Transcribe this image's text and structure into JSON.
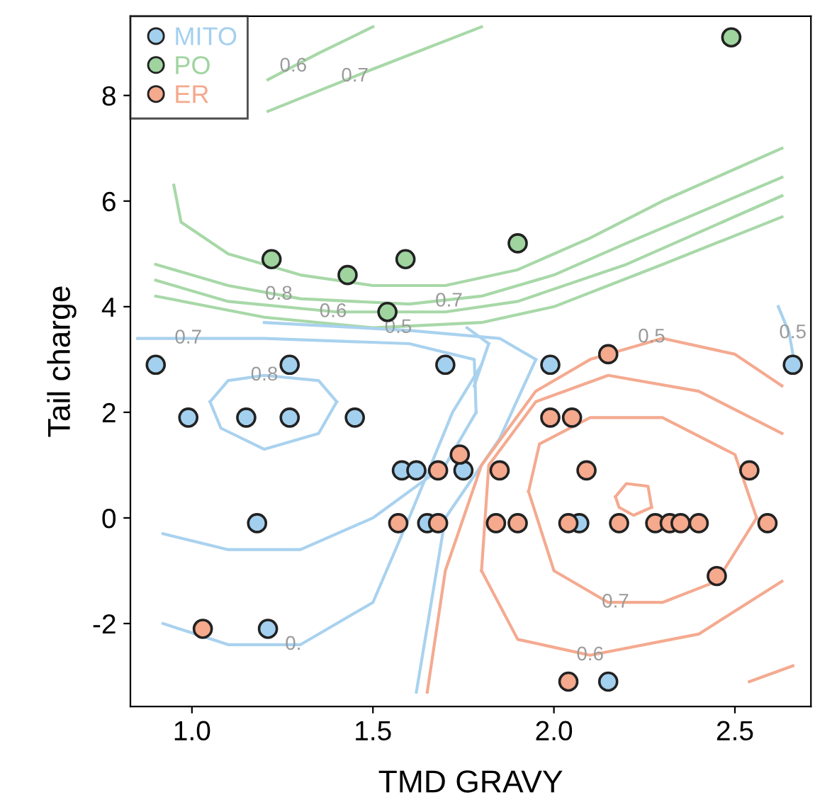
{
  "chart_data": {
    "type": "scatter",
    "xlabel": "TMD GRAVY",
    "ylabel": "Tail charge",
    "xlim": [
      0.83,
      2.71
    ],
    "ylim": [
      -3.57,
      9.5
    ],
    "xticks": [
      {
        "value": 1,
        "label": "1.0"
      },
      {
        "value": 1.5,
        "label": "1.5"
      },
      {
        "value": 2,
        "label": "2.0"
      },
      {
        "value": 2.5,
        "label": "2.5"
      }
    ],
    "yticks": [
      -2,
      0,
      2,
      4,
      6,
      8
    ],
    "legend": "top left",
    "marker": "circle",
    "series": [
      {
        "name": "MITO",
        "color": "#a3d0ef",
        "x": [
          0.9,
          0.99,
          1.15,
          1.27,
          1.27,
          1.45,
          1.18,
          1.21,
          1.7,
          1.58,
          1.62,
          1.75,
          1.65,
          1.99,
          2.07,
          2.15,
          2.66
        ],
        "values": [
          2.9,
          1.9,
          1.9,
          2.9,
          1.9,
          1.9,
          -0.1,
          -2.1,
          2.9,
          0.9,
          0.9,
          0.9,
          -0.1,
          2.9,
          -0.1,
          -3.1,
          2.9
        ]
      },
      {
        "name": "PO",
        "color": "#9fd49f",
        "x": [
          1.22,
          1.43,
          1.59,
          1.54,
          1.9,
          2.49
        ],
        "values": [
          4.9,
          4.6,
          4.9,
          3.9,
          5.2,
          9.1
        ]
      },
      {
        "name": "ER",
        "color": "#f5a98d",
        "x": [
          1.03,
          1.68,
          1.74,
          1.57,
          1.68,
          2.15,
          1.99,
          2.05,
          1.85,
          2.09,
          2.54,
          1.84,
          1.9,
          2.04,
          2.18,
          2.28,
          2.32,
          2.35,
          2.4,
          2.59,
          2.45,
          2.04
        ],
        "values": [
          -2.1,
          0.9,
          1.2,
          -0.1,
          -0.1,
          3.1,
          1.9,
          1.9,
          0.9,
          0.9,
          0.9,
          -0.1,
          -0.1,
          -0.1,
          -0.1,
          -0.1,
          -0.1,
          -0.1,
          -0.1,
          -0.1,
          -1.1,
          -3.1
        ]
      },
      {
        "type": "line",
        "marker": "none",
        "color": "#a8d8a8",
        "x": [
          0.95,
          0.97,
          1.1,
          1.3,
          1.5,
          1.7,
          1.9,
          2.1,
          2.3,
          2.63
        ],
        "values": [
          6.3,
          5.6,
          5.0,
          4.6,
          4.4,
          4.4,
          4.7,
          5.3,
          6.0,
          7.0
        ]
      },
      {
        "type": "line",
        "marker": "none",
        "color": "#a8d8a8",
        "x": [
          0.9,
          1.1,
          1.3,
          1.6,
          1.8,
          2.0,
          2.2,
          2.63
        ],
        "values": [
          4.8,
          4.4,
          4.15,
          4.05,
          4.2,
          4.6,
          5.2,
          6.45
        ]
      },
      {
        "type": "line",
        "marker": "none",
        "color": "#a8d8a8",
        "x": [
          0.9,
          1.1,
          1.4,
          1.7,
          1.9,
          2.2,
          2.63
        ],
        "values": [
          4.5,
          4.1,
          3.9,
          3.9,
          4.1,
          4.8,
          6.1
        ]
      },
      {
        "type": "line",
        "marker": "none",
        "color": "#a8d8a8",
        "x": [
          0.9,
          1.2,
          1.5,
          1.8,
          2.0,
          2.3,
          2.63
        ],
        "values": [
          4.2,
          3.8,
          3.6,
          3.7,
          4.0,
          4.8,
          5.7
        ]
      },
      {
        "type": "line",
        "marker": "none",
        "color": "#a8d8a8",
        "x": [
          1.21,
          1.35,
          1.5
        ],
        "values": [
          8.3,
          8.8,
          9.3
        ]
      },
      {
        "type": "line",
        "marker": "none",
        "color": "#a8d8a8",
        "x": [
          1.21,
          1.5,
          1.8
        ],
        "values": [
          7.7,
          8.5,
          9.3
        ]
      },
      {
        "type": "line",
        "marker": "none",
        "color": "#a9d2ee",
        "x": [
          0.85,
          1.2,
          1.6,
          1.78,
          1.785
        ],
        "values": [
          3.4,
          3.4,
          3.3,
          3.0,
          2.0
        ]
      },
      {
        "type": "line",
        "marker": "none",
        "color": "#a9d2ee",
        "x": [
          0.92,
          1.1,
          1.3,
          1.5,
          1.7,
          1.785
        ],
        "values": [
          -0.3,
          -0.6,
          -0.6,
          0.0,
          1.0,
          2.0
        ]
      },
      {
        "type": "line",
        "marker": "none",
        "color": "#a9d2ee",
        "x": [
          1.05,
          1.1,
          1.2,
          1.35,
          1.4
        ],
        "values": [
          2.2,
          2.6,
          2.7,
          2.6,
          2.2
        ]
      },
      {
        "type": "line",
        "marker": "none",
        "color": "#a9d2ee",
        "x": [
          1.05,
          1.08,
          1.2,
          1.35,
          1.4
        ],
        "values": [
          2.2,
          1.7,
          1.3,
          1.6,
          2.2
        ]
      },
      {
        "type": "line",
        "marker": "none",
        "color": "#a9d2ee",
        "x": [
          0.92,
          1.1,
          1.3,
          1.5,
          1.6,
          1.72,
          1.8
        ],
        "values": [
          -2.0,
          -2.4,
          -2.4,
          -1.6,
          0.0,
          2.0,
          2.9
        ]
      },
      {
        "type": "line",
        "marker": "none",
        "color": "#a9d2ee",
        "x": [
          1.2,
          1.6,
          1.85,
          1.95
        ],
        "values": [
          3.7,
          3.55,
          3.4,
          3.0
        ]
      },
      {
        "type": "line",
        "marker": "none",
        "color": "#a9d2ee",
        "x": [
          1.62,
          1.7,
          1.85,
          1.95
        ],
        "values": [
          -3.3,
          0.0,
          1.5,
          3.0
        ]
      },
      {
        "type": "line",
        "marker": "none",
        "color": "#a9d2ee",
        "x": [
          1.76,
          1.82
        ],
        "values": [
          3.6,
          3.3
        ]
      },
      {
        "type": "line",
        "marker": "none",
        "color": "#a9d2ee",
        "x": [
          1.78,
          1.82
        ],
        "values": [
          2.5,
          3.3
        ]
      },
      {
        "type": "line",
        "marker": "none",
        "color": "#a9d2ee",
        "x": [
          2.62,
          2.65,
          2.66
        ],
        "values": [
          4.0,
          3.5,
          3.1
        ]
      },
      {
        "type": "line",
        "marker": "none",
        "color": "#f4aa90",
        "x": [
          1.65,
          1.7,
          1.8,
          1.95,
          2.1,
          2.3,
          2.5,
          2.63
        ],
        "values": [
          -3.3,
          -1.0,
          1.0,
          2.4,
          3.0,
          3.4,
          3.1,
          2.5
        ]
      },
      {
        "type": "line",
        "marker": "none",
        "color": "#f4aa90",
        "x": [
          1.8,
          1.9,
          2.1,
          2.4,
          2.63
        ],
        "values": [
          -1.0,
          -2.3,
          -2.6,
          -2.2,
          -1.2
        ]
      },
      {
        "type": "line",
        "marker": "none",
        "color": "#f4aa90",
        "x": [
          1.8,
          1.82,
          1.95,
          2.15,
          2.4,
          2.63
        ],
        "values": [
          -1.0,
          1.0,
          2.2,
          2.7,
          2.4,
          1.6
        ]
      },
      {
        "type": "line",
        "marker": "none",
        "color": "#f4aa90",
        "x": [
          1.93,
          1.96,
          2.1,
          2.3,
          2.5,
          2.56
        ],
        "values": [
          0.5,
          1.4,
          1.9,
          1.9,
          1.2,
          0.0
        ]
      },
      {
        "type": "line",
        "marker": "none",
        "color": "#f4aa90",
        "x": [
          1.93,
          2.0,
          2.15,
          2.3,
          2.45,
          2.56
        ],
        "values": [
          0.5,
          -1.0,
          -1.6,
          -1.6,
          -1.2,
          0.0
        ]
      },
      {
        "type": "line",
        "marker": "none",
        "color": "#f4aa90",
        "x": [
          2.17,
          2.2,
          2.26,
          2.27
        ],
        "values": [
          0.4,
          0.65,
          0.6,
          0.2
        ]
      },
      {
        "type": "line",
        "marker": "none",
        "color": "#f4aa90",
        "x": [
          2.17,
          2.18,
          2.22,
          2.27
        ],
        "values": [
          0.4,
          0.2,
          0.05,
          0.2
        ]
      },
      {
        "type": "line",
        "marker": "none",
        "color": "#f4aa90",
        "x": [
          2.54,
          2.66
        ],
        "values": [
          -3.1,
          -2.8
        ]
      }
    ],
    "annotations": [
      {
        "text": "0.6",
        "x": 1.28,
        "y": 8.55
      },
      {
        "text": "0.7",
        "x": 1.45,
        "y": 8.36
      },
      {
        "text": "0.8",
        "x": 1.24,
        "y": 4.23
      },
      {
        "text": "0.6",
        "x": 1.39,
        "y": 3.9
      },
      {
        "text": "0.7",
        "x": 1.71,
        "y": 4.1
      },
      {
        "text": "0.5",
        "x": 1.57,
        "y": 3.6
      },
      {
        "text": "0.7",
        "x": 0.99,
        "y": 3.4
      },
      {
        "text": "0.8",
        "x": 1.2,
        "y": 2.7
      },
      {
        "text": "0.",
        "x": 1.28,
        "y": -2.4
      },
      {
        "text": "0.5",
        "x": 2.66,
        "y": 3.5
      },
      {
        "text": "0.5",
        "x": 2.27,
        "y": 3.42
      },
      {
        "text": "0.6",
        "x": 2.1,
        "y": -2.6
      },
      {
        "text": "0.7",
        "x": 2.17,
        "y": -1.6
      }
    ]
  }
}
